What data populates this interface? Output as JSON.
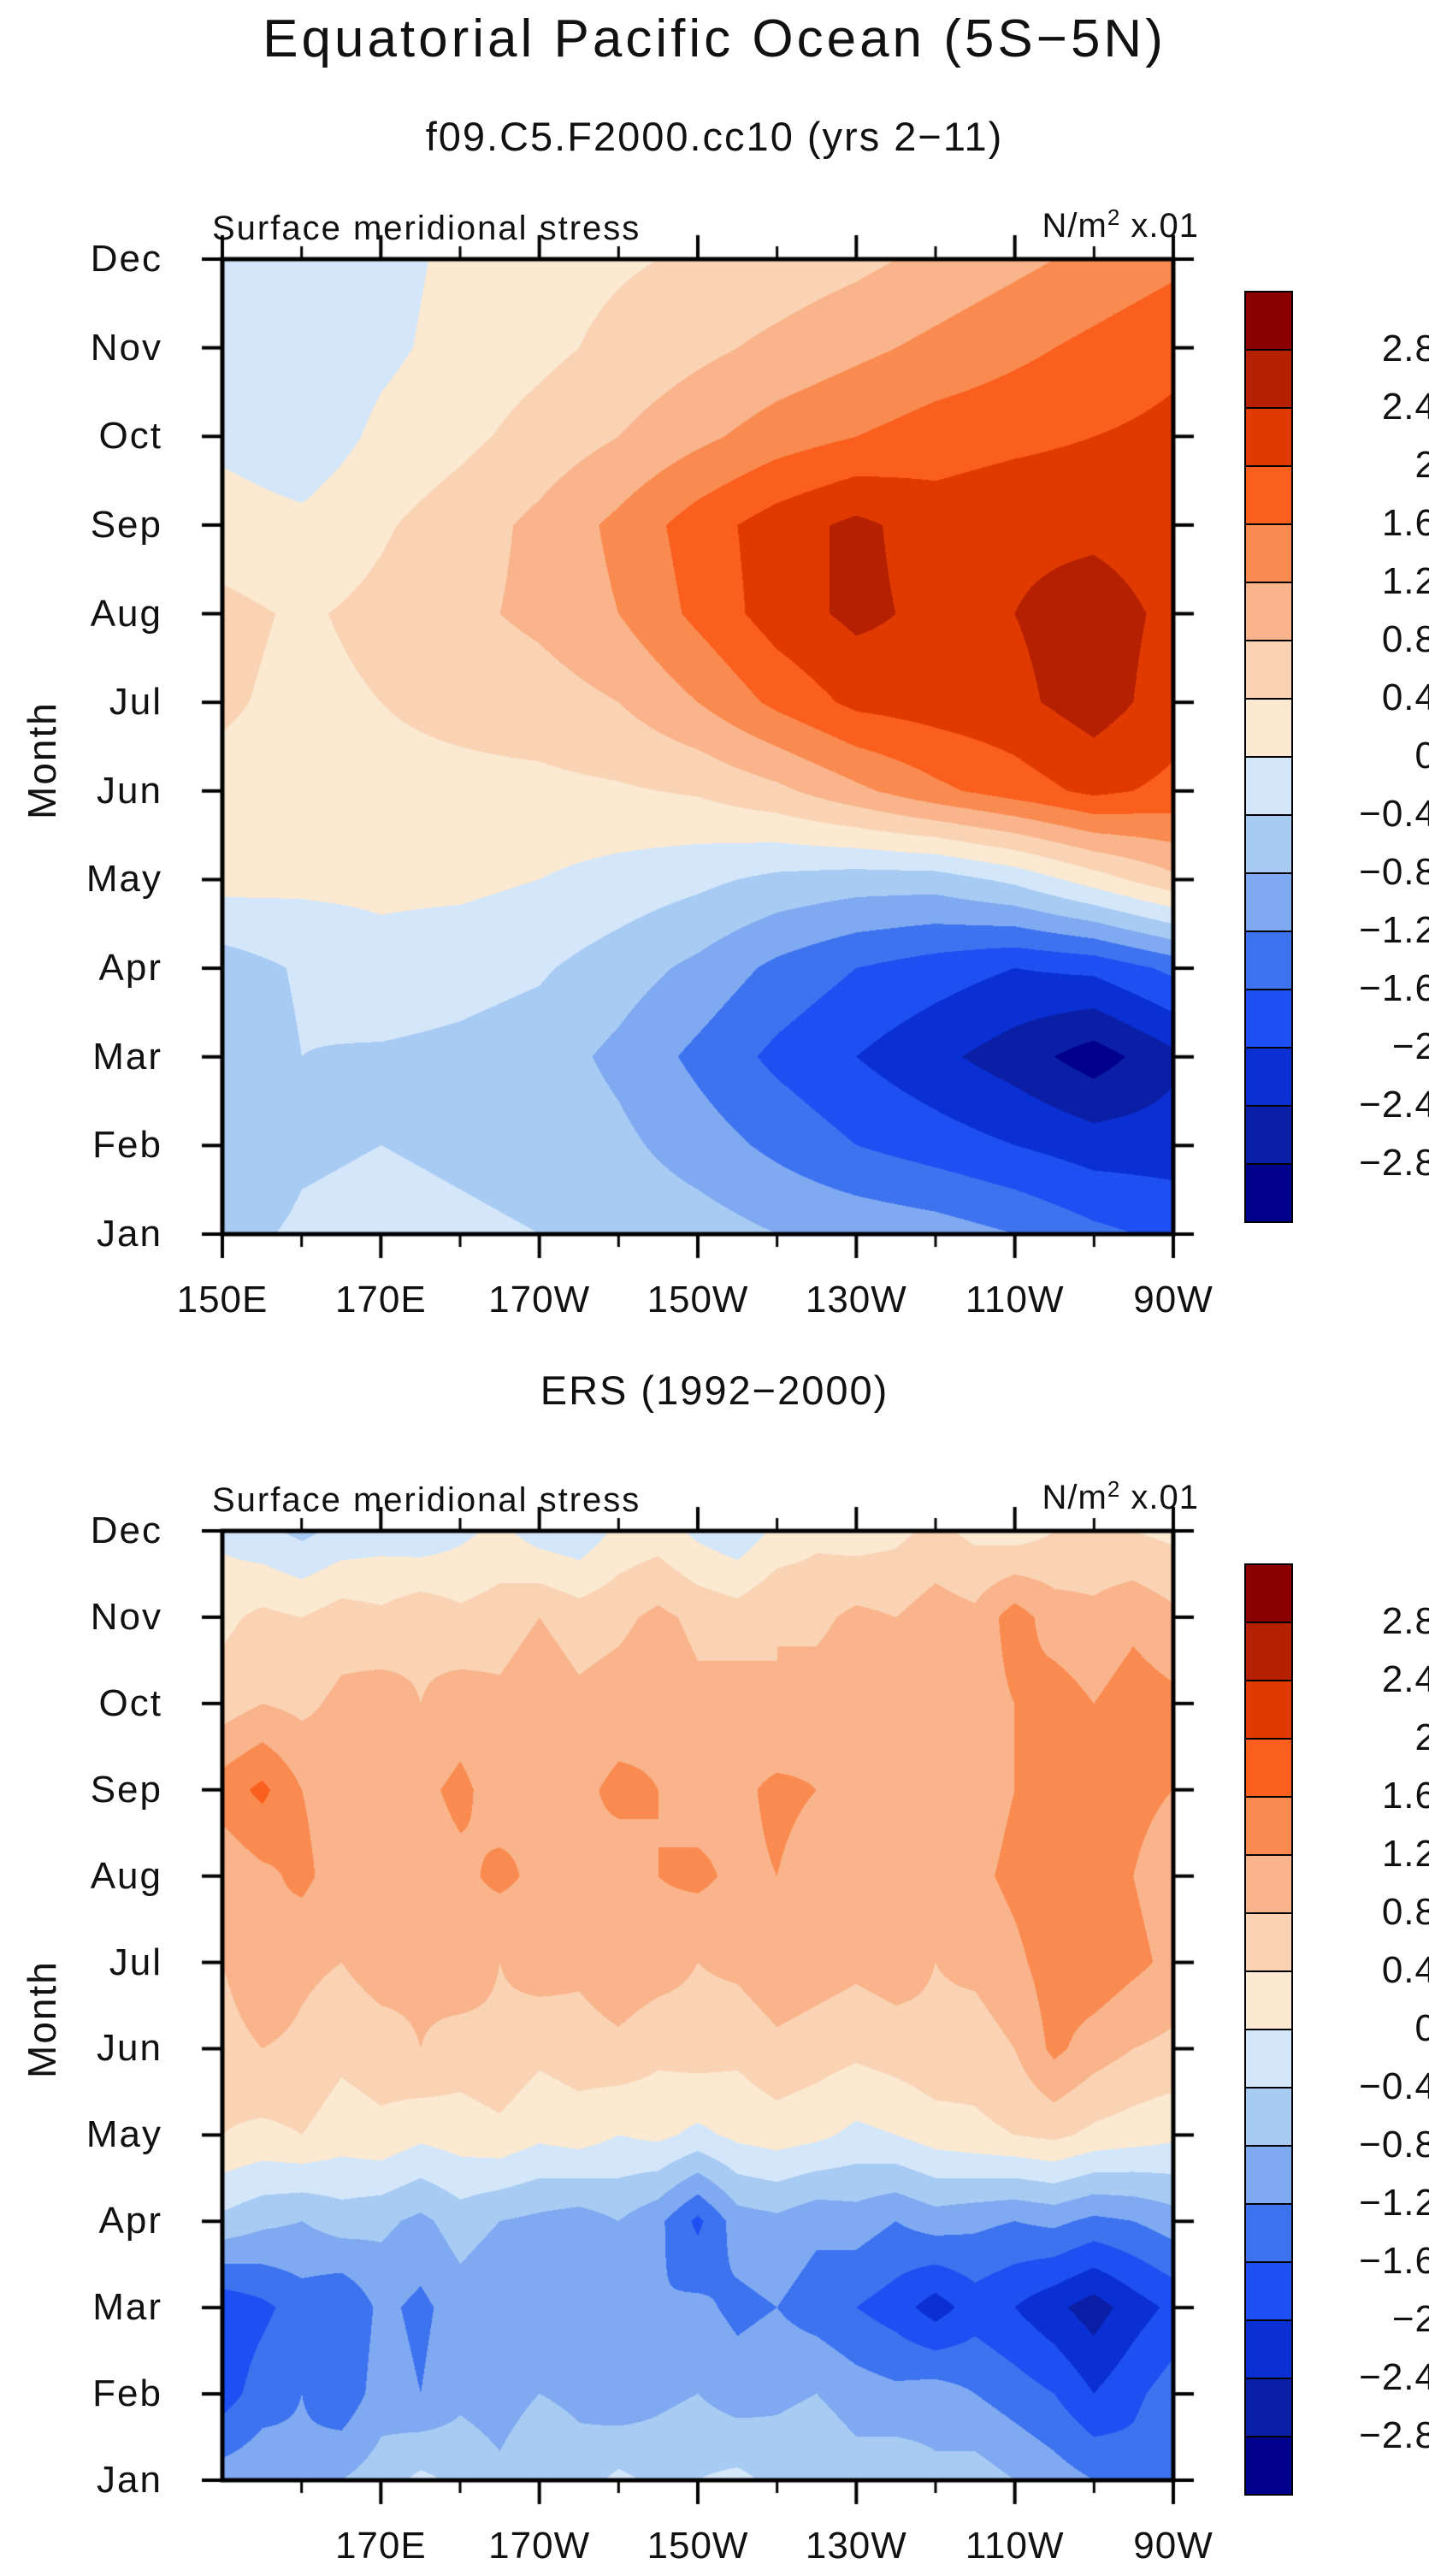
{
  "page": {
    "title": "Equatorial Pacific Ocean (5S−5N)"
  },
  "axis": {
    "y_label": "Month",
    "months_top_to_bottom": [
      "Dec",
      "Nov",
      "Oct",
      "Sep",
      "Aug",
      "Jul",
      "Jun",
      "May",
      "Apr",
      "Mar",
      "Feb",
      "Jan"
    ]
  },
  "colorbar": {
    "levels": [
      -2.8,
      -2.4,
      -2,
      -1.6,
      -1.2,
      -0.8,
      -0.4,
      0,
      0.4,
      0.8,
      1.2,
      1.6,
      2,
      2.4,
      2.8
    ],
    "colors_low_to_high": [
      "#00008C",
      "#0B1FA6",
      "#0A2FD2",
      "#1D4FF2",
      "#3E73F0",
      "#7FA9F0",
      "#A8CBF4",
      "#D4E7FA",
      "#FBE9D2",
      "#FAD3B4",
      "#F9B48B",
      "#F98B50",
      "#FA5F1E",
      "#E03A00",
      "#B52000",
      "#8B0000"
    ],
    "tick_labels_top_to_bottom": [
      "2.8",
      "2.4",
      "2",
      "1.6",
      "1.2",
      "0.8",
      "0.4",
      "0",
      "−0.4",
      "−0.8",
      "−1.2",
      "−1.6",
      "−2",
      "−2.4",
      "−2.8"
    ]
  },
  "chart_data": [
    {
      "type": "heatmap",
      "title": "f09.C5.F2000.cc10 (yrs 2−11)",
      "header_left": "Surface meridional stress",
      "unit_base": "N/m",
      "unit_sup": "2",
      "unit_suffix": " x.01",
      "ylabel": "Month",
      "lon_min": 150,
      "lon_max": 270,
      "x_tick_labels": [
        "150E",
        "170E",
        "170W",
        "150W",
        "130W",
        "110W",
        "90W"
      ],
      "x_tick_lons": [
        150,
        170,
        190,
        210,
        230,
        250,
        270
      ],
      "x_minor_lons": [
        160,
        180,
        200,
        220,
        240,
        260
      ],
      "months_top_to_bottom": [
        "Dec",
        "Nov",
        "Oct",
        "Sep",
        "Aug",
        "Jul",
        "Jun",
        "May",
        "Apr",
        "Mar",
        "Feb",
        "Jan"
      ],
      "grid_lon_min": 150,
      "grid_lon_step": 10,
      "grid_rows_top_to_bottom": [
        [
          -0.3,
          -0.25,
          -0.15,
          0.1,
          0.25,
          0.35,
          0.45,
          0.55,
          0.7,
          0.9,
          1.1,
          1.3,
          1.5
        ],
        [
          -0.2,
          -0.35,
          -0.1,
          0.15,
          0.3,
          0.5,
          0.7,
          0.9,
          1.1,
          1.3,
          1.5,
          1.7,
          1.9
        ],
        [
          -0.1,
          -0.3,
          0.1,
          0.3,
          0.55,
          0.8,
          1.1,
          1.4,
          1.6,
          1.8,
          1.9,
          2.0,
          2.1
        ],
        [
          0.2,
          0.1,
          0.35,
          0.6,
          0.9,
          1.3,
          1.8,
          2.2,
          2.5,
          2.2,
          2.3,
          2.3,
          2.2
        ],
        [
          0.5,
          0.35,
          0.5,
          0.7,
          0.9,
          1.2,
          1.7,
          2.2,
          2.5,
          2.3,
          2.4,
          2.6,
          2.3
        ],
        [
          0.45,
          0.3,
          0.4,
          0.5,
          0.6,
          0.8,
          1.2,
          1.7,
          2.1,
          2.2,
          2.3,
          2.6,
          2.2
        ],
        [
          0.3,
          0.25,
          0.3,
          0.3,
          0.3,
          0.35,
          0.45,
          0.7,
          1.1,
          1.5,
          1.8,
          2.1,
          1.9
        ],
        [
          0.15,
          0.1,
          0.1,
          0.1,
          0.0,
          -0.15,
          -0.3,
          -0.5,
          -0.6,
          -0.6,
          -0.3,
          0.2,
          0.7
        ],
        [
          -0.6,
          -0.35,
          -0.15,
          -0.25,
          -0.35,
          -0.6,
          -0.9,
          -1.3,
          -1.6,
          -1.8,
          -2.0,
          -1.9,
          -1.5
        ],
        [
          -0.7,
          -0.4,
          -0.45,
          -0.5,
          -0.6,
          -0.9,
          -1.3,
          -1.7,
          -2.0,
          -2.3,
          -2.6,
          -3.0,
          -2.5
        ],
        [
          -0.7,
          -0.45,
          -0.4,
          -0.45,
          -0.5,
          -0.7,
          -1.0,
          -1.3,
          -1.6,
          -1.8,
          -2.0,
          -2.2,
          -2.2
        ],
        [
          -0.5,
          -0.35,
          -0.3,
          -0.35,
          -0.4,
          -0.5,
          -0.6,
          -0.8,
          -0.9,
          -1.0,
          -1.2,
          -1.5,
          -1.7
        ]
      ]
    },
    {
      "type": "heatmap",
      "title": "ERS (1992−2000)",
      "header_left": "Surface meridional stress",
      "unit_base": "N/m",
      "unit_sup": "2",
      "unit_suffix": " x.01",
      "ylabel": "Month",
      "lon_min": 150,
      "lon_max": 270,
      "x_tick_labels": [
        "170E",
        "170W",
        "150W",
        "130W",
        "110W",
        "90W"
      ],
      "x_tick_lons": [
        170,
        190,
        210,
        230,
        250,
        270
      ],
      "x_minor_lons": [
        160,
        180,
        200,
        220,
        240,
        260
      ],
      "months_top_to_bottom": [
        "Dec",
        "Nov",
        "Oct",
        "Sep",
        "Aug",
        "Jul",
        "Jun",
        "May",
        "Apr",
        "Mar",
        "Feb",
        "Jan"
      ],
      "grid_lon_min": 150,
      "grid_lon_step": 5,
      "grid_rows_top_to_bottom": [
        [
          -0.1,
          -0.3,
          -0.5,
          -0.3,
          -0.2,
          -0.3,
          -0.1,
          0.1,
          -0.2,
          -0.3,
          0.1,
          0.2,
          -0.1,
          -0.3,
          0.1,
          0.3,
          0.2,
          0.3,
          0.5,
          0.3,
          0.2,
          0.4,
          0.5,
          0.4,
          0.3
        ],
        [
          0.3,
          0.5,
          0.4,
          0.6,
          0.5,
          0.7,
          0.5,
          0.6,
          0.8,
          0.6,
          0.7,
          0.9,
          0.7,
          0.6,
          0.8,
          0.7,
          0.9,
          0.8,
          1.0,
          0.9,
          1.4,
          1.0,
          0.9,
          1.1,
          0.9
        ],
        [
          0.6,
          0.8,
          0.7,
          0.9,
          1.0,
          0.8,
          1.0,
          0.9,
          1.1,
          0.9,
          1.0,
          1.1,
          0.9,
          1.0,
          0.8,
          1.0,
          1.1,
          0.9,
          1.1,
          1.0,
          1.2,
          1.4,
          1.2,
          1.4,
          1.3
        ],
        [
          1.4,
          1.7,
          1.2,
          1.0,
          0.9,
          1.1,
          1.3,
          1.0,
          1.2,
          1.1,
          1.3,
          1.2,
          1.0,
          1.1,
          1.3,
          1.2,
          1.0,
          1.2,
          1.1,
          1.0,
          1.2,
          1.3,
          1.5,
          1.3,
          1.2
        ],
        [
          0.9,
          1.1,
          1.3,
          1.0,
          1.2,
          1.0,
          1.1,
          1.3,
          1.1,
          1.2,
          1.0,
          1.2,
          1.3,
          1.1,
          1.2,
          1.0,
          1.1,
          1.2,
          1.0,
          1.1,
          1.3,
          1.5,
          1.4,
          1.2,
          1.0
        ],
        [
          0.8,
          1.2,
          0.9,
          0.8,
          1.0,
          0.9,
          1.1,
          0.8,
          1.0,
          0.9,
          1.1,
          1.0,
          0.8,
          0.9,
          1.1,
          1.0,
          0.9,
          1.0,
          0.8,
          0.9,
          1.1,
          1.4,
          1.5,
          1.3,
          1.1
        ],
        [
          0.6,
          0.8,
          0.7,
          0.5,
          0.6,
          0.8,
          0.6,
          0.7,
          0.5,
          0.6,
          0.7,
          0.5,
          0.6,
          0.5,
          0.7,
          0.6,
          0.5,
          0.6,
          0.7,
          0.6,
          0.8,
          1.3,
          1.0,
          0.8,
          0.7
        ],
        [
          0.4,
          0.3,
          0.4,
          0.2,
          0.3,
          0.1,
          0.2,
          0.3,
          0.1,
          0.2,
          0.0,
          0.1,
          -0.1,
          0.1,
          0.2,
          0.1,
          -0.1,
          0.0,
          0.2,
          0.3,
          0.4,
          0.5,
          0.3,
          0.2,
          0.1
        ],
        [
          -0.5,
          -0.7,
          -0.8,
          -0.6,
          -0.7,
          -0.9,
          -0.6,
          -0.8,
          -0.9,
          -1.0,
          -0.8,
          -1.1,
          -1.7,
          -1.0,
          -0.9,
          -1.1,
          -1.0,
          -1.2,
          -1.0,
          -1.1,
          -1.2,
          -1.1,
          -1.3,
          -1.2,
          -1.0
        ],
        [
          -1.9,
          -1.7,
          -1.4,
          -1.6,
          -1.1,
          -1.3,
          -1.0,
          -1.2,
          -0.9,
          -1.1,
          -1.0,
          -1.2,
          -1.1,
          -1.3,
          -1.2,
          -1.4,
          -1.6,
          -1.8,
          -2.2,
          -1.8,
          -2.0,
          -2.3,
          -2.6,
          -2.2,
          -1.9
        ],
        [
          -1.8,
          -1.4,
          -1.2,
          -1.5,
          -1.0,
          -1.2,
          -0.9,
          -1.0,
          -0.8,
          -0.9,
          -1.1,
          -0.9,
          -0.8,
          -1.0,
          -0.9,
          -0.8,
          -1.0,
          -1.1,
          -1.0,
          -1.2,
          -1.4,
          -1.6,
          -2.0,
          -1.7,
          -1.4
        ],
        [
          -1.0,
          -0.9,
          -1.1,
          -0.8,
          -0.6,
          -0.3,
          -0.5,
          -0.7,
          -0.4,
          -0.6,
          -0.3,
          -0.5,
          -0.4,
          -0.3,
          -0.5,
          -0.4,
          -0.6,
          -0.5,
          -0.7,
          -0.6,
          -0.8,
          -1.0,
          -1.2,
          -1.4,
          -1.2
        ]
      ]
    }
  ]
}
